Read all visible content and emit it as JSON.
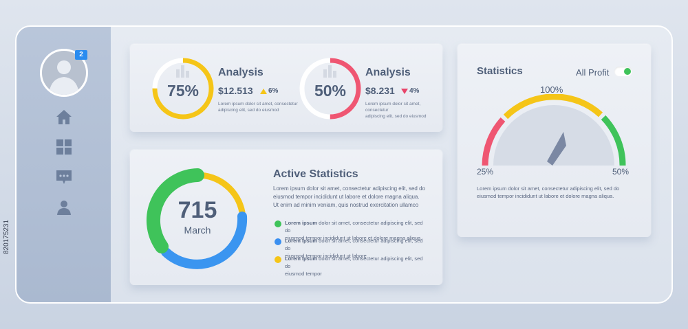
{
  "sidebar": {
    "notification_count": "2",
    "items": [
      {
        "name": "home-icon"
      },
      {
        "name": "grid-icon"
      },
      {
        "name": "chat-icon"
      },
      {
        "name": "user-icon"
      }
    ]
  },
  "analysis_cards": [
    {
      "percent_label": "75%",
      "progress": 0.75,
      "title": "Analysis",
      "amount": "$12.513",
      "change": "6%",
      "direction": "up",
      "ring_color": "#f5c518",
      "change_color": "#f5c518",
      "desc_line1": "Lorem ipsum dolor sit amet, consectetur",
      "desc_line2": "adipiscing elit, sed do eiusmod"
    },
    {
      "percent_label": "50%",
      "progress": 0.5,
      "title": "Analysis",
      "amount": "$8.231",
      "change": "4%",
      "direction": "down",
      "ring_color": "#ef5672",
      "change_color": "#e8466a",
      "desc_line1": "Lorem ipsum dolor sit amet, consectetur",
      "desc_line2": "adipiscing elit, sed do eiusmod"
    }
  ],
  "active_statistics": {
    "value": "715",
    "label": "March",
    "title": "Active Statistics",
    "paragraph": [
      "Lorem ipsum dolor sit amet, consectetur adipiscing elit, sed do",
      "eiusmod tempor incididunt ut labore et dolore magna aliqua.",
      "Ut enim ad minim veniam, quis nostrud exercitation ullamco"
    ],
    "legend": [
      {
        "color": "#3fc35a",
        "line1_bold": "Lorem ipsum",
        "line1": " dolor sit amet, consectetur adipiscing elit, sed do",
        "line2": "eiusmod tempor incididunt ut labore et dolore magna aliqua."
      },
      {
        "color": "#3a8ff0",
        "line1_bold": "Lorem ipsum",
        "line1": " dolor sit amet, consectetur adipiscing elit, sed do",
        "line2": "eiusmod tempor incididunt ut labore"
      },
      {
        "color": "#f5c518",
        "line1_bold": "Lorem ipsum",
        "line1": " dolor sit amet, consectetur adipiscing elit, sed do",
        "line2": "eiusmod tempor"
      }
    ]
  },
  "statistics": {
    "title": "Statistics",
    "toggle_label": "All Profit",
    "toggle_color": "#3fc35a",
    "gauge_left_label": "25%",
    "gauge_top_label": "100%",
    "gauge_right_label": "50%",
    "desc_line1": "Lorem ipsum dolor sit amet, consectetur adipiscing elit, sed do",
    "desc_line2": "eiusmod tempor incididunt ut labore et dolore magna aliqua."
  },
  "stock_id": "820175231"
}
